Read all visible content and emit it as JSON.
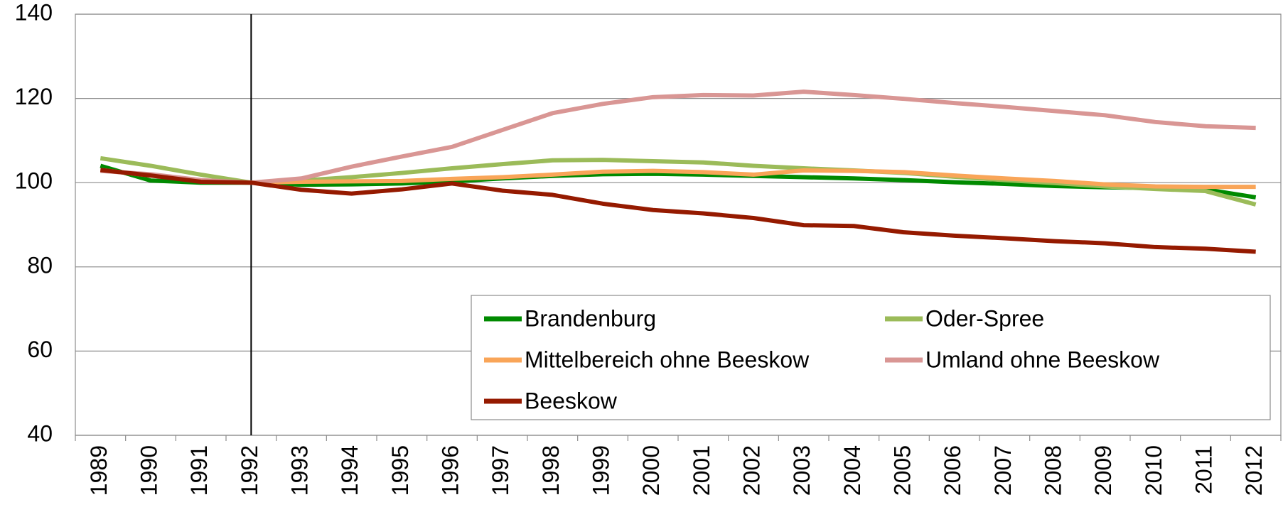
{
  "chart_data": {
    "type": "line",
    "categories": [
      "1989",
      "1990",
      "1991",
      "1992",
      "1993",
      "1994",
      "1995",
      "1996",
      "1997",
      "1998",
      "1999",
      "2000",
      "2001",
      "2002",
      "2003",
      "2004",
      "2005",
      "2006",
      "2007",
      "2008",
      "2009",
      "2010",
      "2011",
      "2012"
    ],
    "series": [
      {
        "name": "Brandenburg",
        "color": "#008a00",
        "values": [
          104,
          100.5,
          100,
          100,
          99.5,
          99.6,
          99.8,
          100.3,
          101,
          101.6,
          102,
          102.1,
          101.9,
          101.6,
          101.3,
          101,
          100.6,
          100.1,
          99.7,
          99.2,
          98.9,
          98.7,
          98.4,
          96.5
        ]
      },
      {
        "name": "Oder-Spree",
        "color": "#9bbb59",
        "values": [
          105.8,
          104,
          101.9,
          100,
          100.5,
          101.3,
          102.3,
          103.4,
          104.4,
          105.3,
          105.4,
          105.1,
          104.8,
          104,
          103.4,
          102.9,
          102.3,
          101.4,
          100.6,
          99.9,
          99.1,
          98.5,
          98,
          94.8
        ]
      },
      {
        "name": "Mittelbereich ohne Beeskow",
        "color": "#f9a558",
        "values": [
          103,
          101.7,
          100.5,
          100,
          100.2,
          100.3,
          100.4,
          100.9,
          101.3,
          101.9,
          102.6,
          102.8,
          102.5,
          101.9,
          102.9,
          102.8,
          102.5,
          101.7,
          101,
          100.4,
          99.6,
          99.1,
          99,
          99
        ]
      },
      {
        "name": "Umland ohne Beeskow",
        "color": "#d99694",
        "values": [
          102.8,
          102,
          100.6,
          100,
          101,
          103.8,
          106.2,
          108.5,
          112.5,
          116.5,
          118.7,
          120.3,
          120.8,
          120.7,
          121.6,
          120.8,
          119.9,
          118.9,
          118,
          117,
          116,
          114.4,
          113.4,
          113
        ]
      },
      {
        "name": "Beeskow",
        "color": "#951a00",
        "values": [
          103,
          101.7,
          100.2,
          100,
          98.3,
          97.4,
          98.4,
          99.8,
          98.1,
          97.1,
          95,
          93.5,
          92.7,
          91.6,
          89.9,
          89.7,
          88.2,
          87.4,
          86.8,
          86.1,
          85.6,
          84.7,
          84.3,
          83.6
        ]
      }
    ],
    "ylim": [
      40,
      140
    ],
    "yticks": [
      40,
      60,
      80,
      100,
      120,
      140
    ],
    "grid": true,
    "vline_category": "1992",
    "legend": "lower right"
  }
}
